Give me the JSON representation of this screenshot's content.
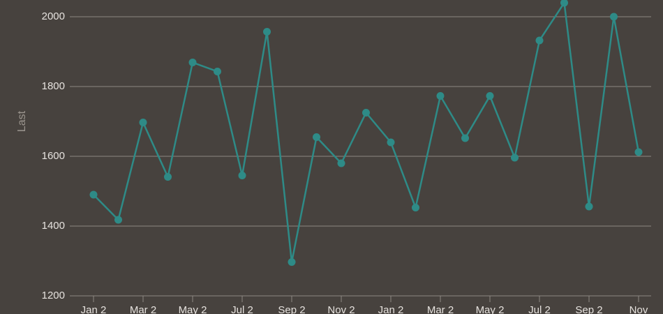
{
  "chart_data": {
    "type": "line",
    "y_label": "Last",
    "categories": [
      "Jan 2",
      null,
      "Mar 2",
      null,
      "May 2",
      null,
      "Jul 2",
      null,
      "Sep 2",
      null,
      "Nov 2",
      null,
      "Jan 2",
      null,
      "Mar 2",
      null,
      "May 2",
      null,
      "Jul 2",
      null,
      "Sep 2",
      null,
      "Nov"
    ],
    "values": [
      1490,
      1418,
      1697,
      1541,
      1869,
      1843,
      1545,
      1957,
      1297,
      1655,
      1580,
      1725,
      1640,
      1453,
      1773,
      1652,
      1773,
      1596,
      1932,
      2040,
      1456,
      2000,
      1612
    ],
    "color": "#2e8b87",
    "ylim": [
      1200,
      2048
    ],
    "yticks": [
      1200,
      1400,
      1600,
      1800,
      2000
    ],
    "grid": true
  }
}
